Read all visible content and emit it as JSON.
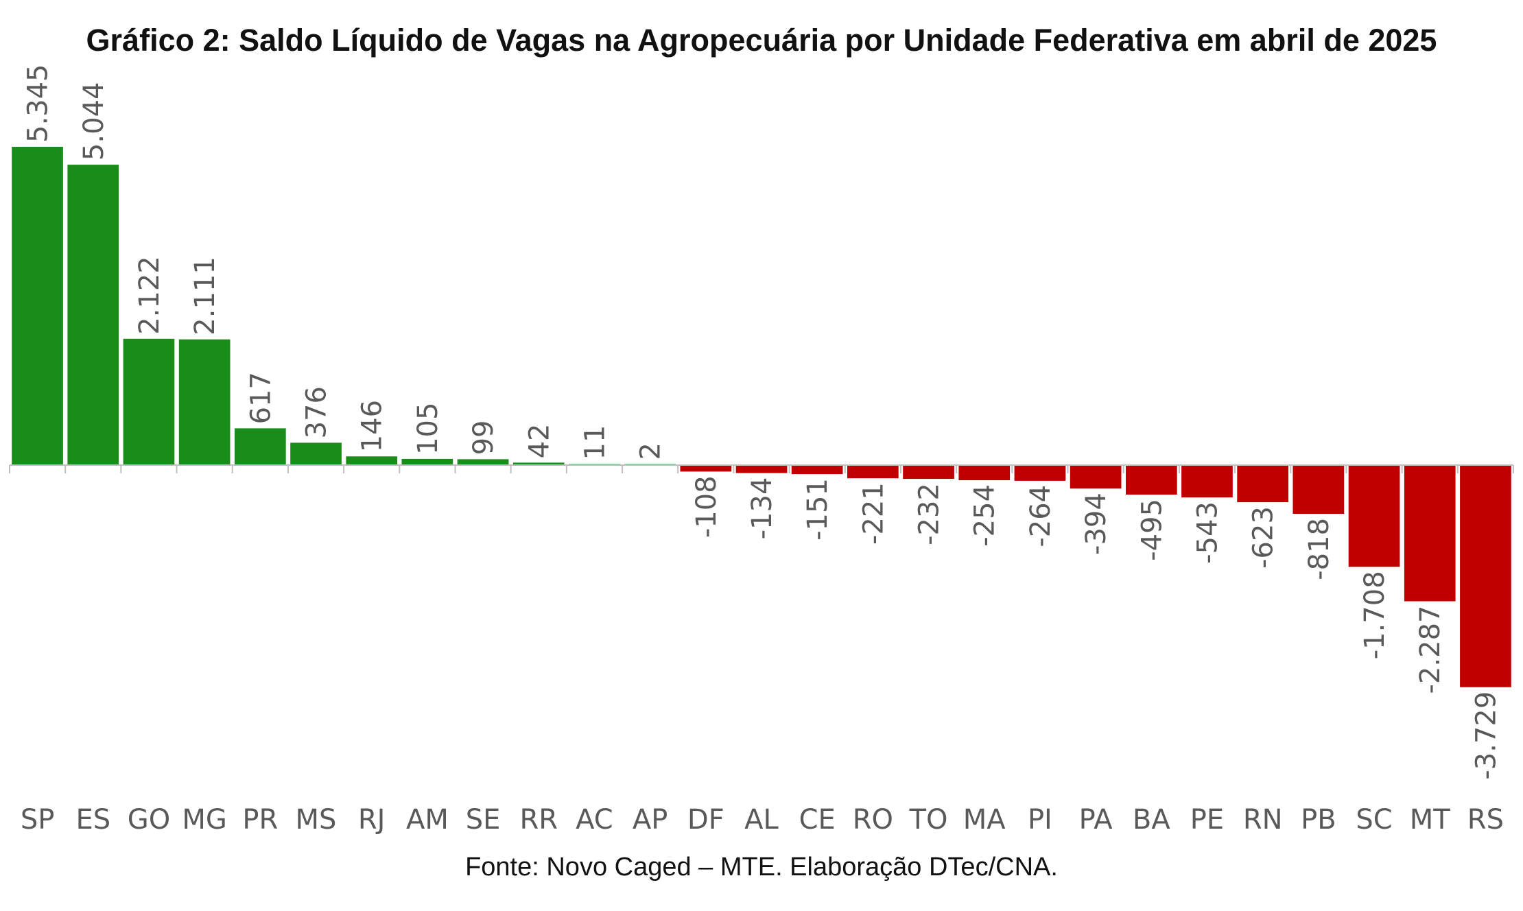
{
  "chart_data": {
    "type": "bar",
    "title": "Gráfico 2: Saldo Líquido de Vagas na Agropecuária por Unidade Federativa em abril de 2025",
    "source": "Fonte: Novo Caged – MTE. Elaboração DTec/CNA.",
    "xlabel": "",
    "ylabel": "",
    "categories": [
      "SP",
      "ES",
      "GO",
      "MG",
      "PR",
      "MS",
      "RJ",
      "AM",
      "SE",
      "RR",
      "AC",
      "AP",
      "DF",
      "AL",
      "CE",
      "RO",
      "TO",
      "MA",
      "PI",
      "PA",
      "BA",
      "PE",
      "RN",
      "PB",
      "SC",
      "MT",
      "RS"
    ],
    "values": [
      5345,
      5044,
      2122,
      2111,
      617,
      376,
      146,
      105,
      99,
      42,
      11,
      2,
      -108,
      -134,
      -151,
      -221,
      -232,
      -254,
      -264,
      -394,
      -495,
      -543,
      -623,
      -818,
      -1708,
      -2287,
      -3729
    ],
    "value_labels": [
      "5.345",
      "5.044",
      "2.122",
      "2.111",
      "617",
      "376",
      "146",
      "105",
      "99",
      "42",
      "11",
      "2",
      "-108",
      "-134",
      "-151",
      "-221",
      "-232",
      "-254",
      "-264",
      "-394",
      "-495",
      "-543",
      "-623",
      "-818",
      "-1.708",
      "-2.287",
      "-3.729"
    ],
    "colors": {
      "positive": "#1a8c1a",
      "negative": "#c00000"
    },
    "grid": false,
    "legend": "none",
    "ylim": [
      -3729,
      5345
    ]
  }
}
